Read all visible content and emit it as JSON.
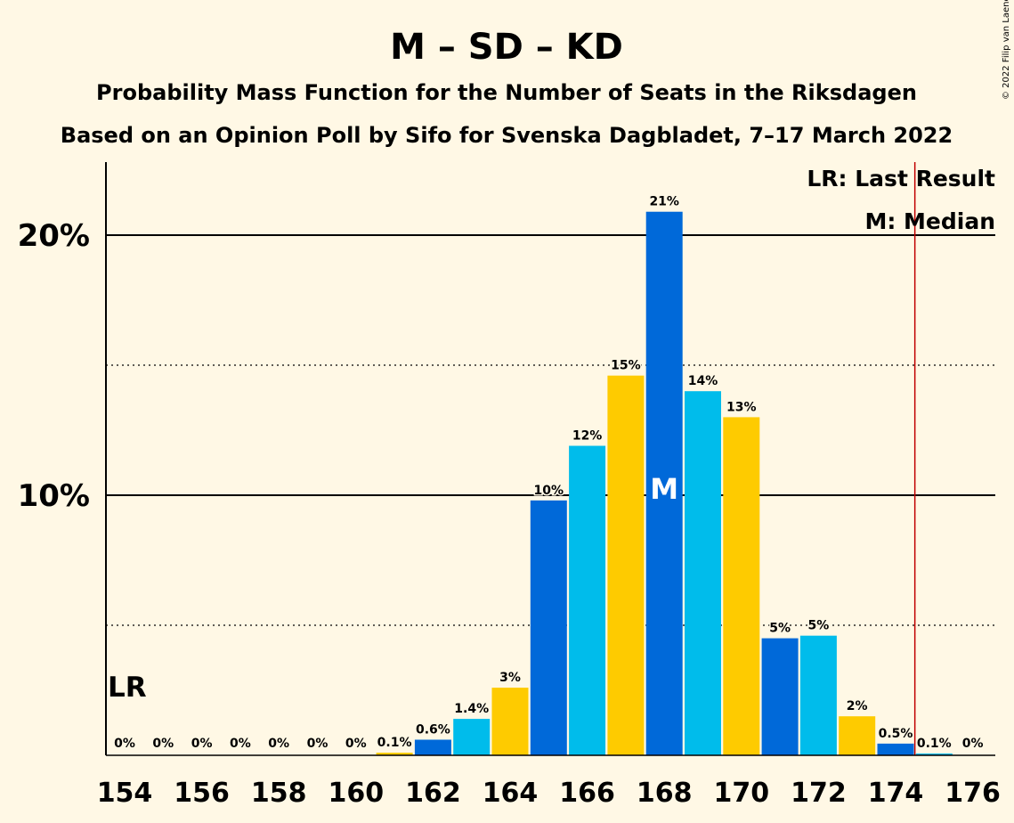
{
  "chart_data": {
    "type": "bar",
    "title": "M – SD – KD",
    "subtitle": "Probability Mass Function for the Number of Seats in the Riksdagen",
    "subtitle2": "Based on an Opinion Poll by Sifo for Svenska Dagbladet, 7–17 March 2022",
    "copyright": "© 2022 Filip van Laenen",
    "x": [
      154,
      155,
      156,
      157,
      158,
      159,
      160,
      161,
      162,
      163,
      164,
      165,
      166,
      167,
      168,
      169,
      170,
      171,
      172,
      173,
      174,
      175,
      176
    ],
    "values": [
      0,
      0,
      0,
      0,
      0,
      0,
      0,
      0.1,
      0.6,
      1.4,
      2.6,
      9.8,
      11.9,
      14.6,
      20.9,
      14.0,
      13.0,
      4.5,
      4.6,
      1.5,
      0.45,
      0.07,
      0
    ],
    "data_labels": [
      "0%",
      "0%",
      "0%",
      "0%",
      "0%",
      "0%",
      "0%",
      "0.1%",
      "0.6%",
      "1.4%",
      "3%",
      "10%",
      "12%",
      "15%",
      "21%",
      "14%",
      "13%",
      "5%",
      "5%",
      "2%",
      "0.5%",
      "0.1%",
      "0%"
    ],
    "x_ticks": [
      "154",
      "156",
      "158",
      "160",
      "162",
      "164",
      "166",
      "168",
      "170",
      "172",
      "174",
      "176"
    ],
    "y_ticks": [
      {
        "value": 10,
        "label": "10%"
      },
      {
        "value": 20,
        "label": "20%"
      }
    ],
    "y_minor_gridlines": [
      5,
      15
    ],
    "ylim": [
      0,
      22.8
    ],
    "colors": {
      "background": "#FFF8E5",
      "light_blue": "#00BCEB",
      "yellow": "#FECB00",
      "dark_blue": "#0069D9",
      "last_result_line": "#C00000",
      "median_text": "#FFFFFF"
    },
    "last_result": {
      "seat": 174.5,
      "label": "LR"
    },
    "median": {
      "seat": 168,
      "label": "M"
    },
    "legend": [
      "LR: Last Result",
      "M: Median"
    ],
    "grid": true,
    "legend_position": "top-right"
  }
}
